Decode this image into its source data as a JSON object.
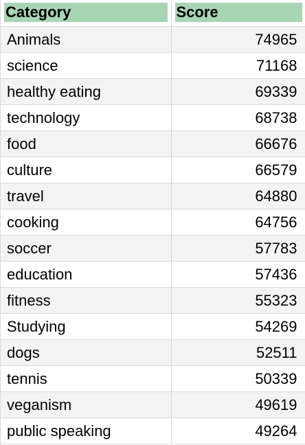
{
  "table": {
    "columns": [
      "Category",
      "Score"
    ],
    "rows": [
      {
        "category": "Animals",
        "score": "74965"
      },
      {
        "category": "science",
        "score": "71168"
      },
      {
        "category": "healthy eating",
        "score": "69339"
      },
      {
        "category": "technology",
        "score": "68738"
      },
      {
        "category": "food",
        "score": "66676"
      },
      {
        "category": "culture",
        "score": "66579"
      },
      {
        "category": "travel",
        "score": "64880"
      },
      {
        "category": "cooking",
        "score": "64756"
      },
      {
        "category": "soccer",
        "score": "57783"
      },
      {
        "category": "education",
        "score": "57436"
      },
      {
        "category": "fitness",
        "score": "55323"
      },
      {
        "category": "Studying",
        "score": "54269"
      },
      {
        "category": "dogs",
        "score": "52511"
      },
      {
        "category": "tennis",
        "score": "50339"
      },
      {
        "category": "veganism",
        "score": "49619"
      },
      {
        "category": "public speaking",
        "score": "49264"
      }
    ]
  },
  "colors": {
    "header_fill": "#a8d5b4",
    "stripe": "#f3f3f3",
    "grid": "#d6d6d6"
  }
}
